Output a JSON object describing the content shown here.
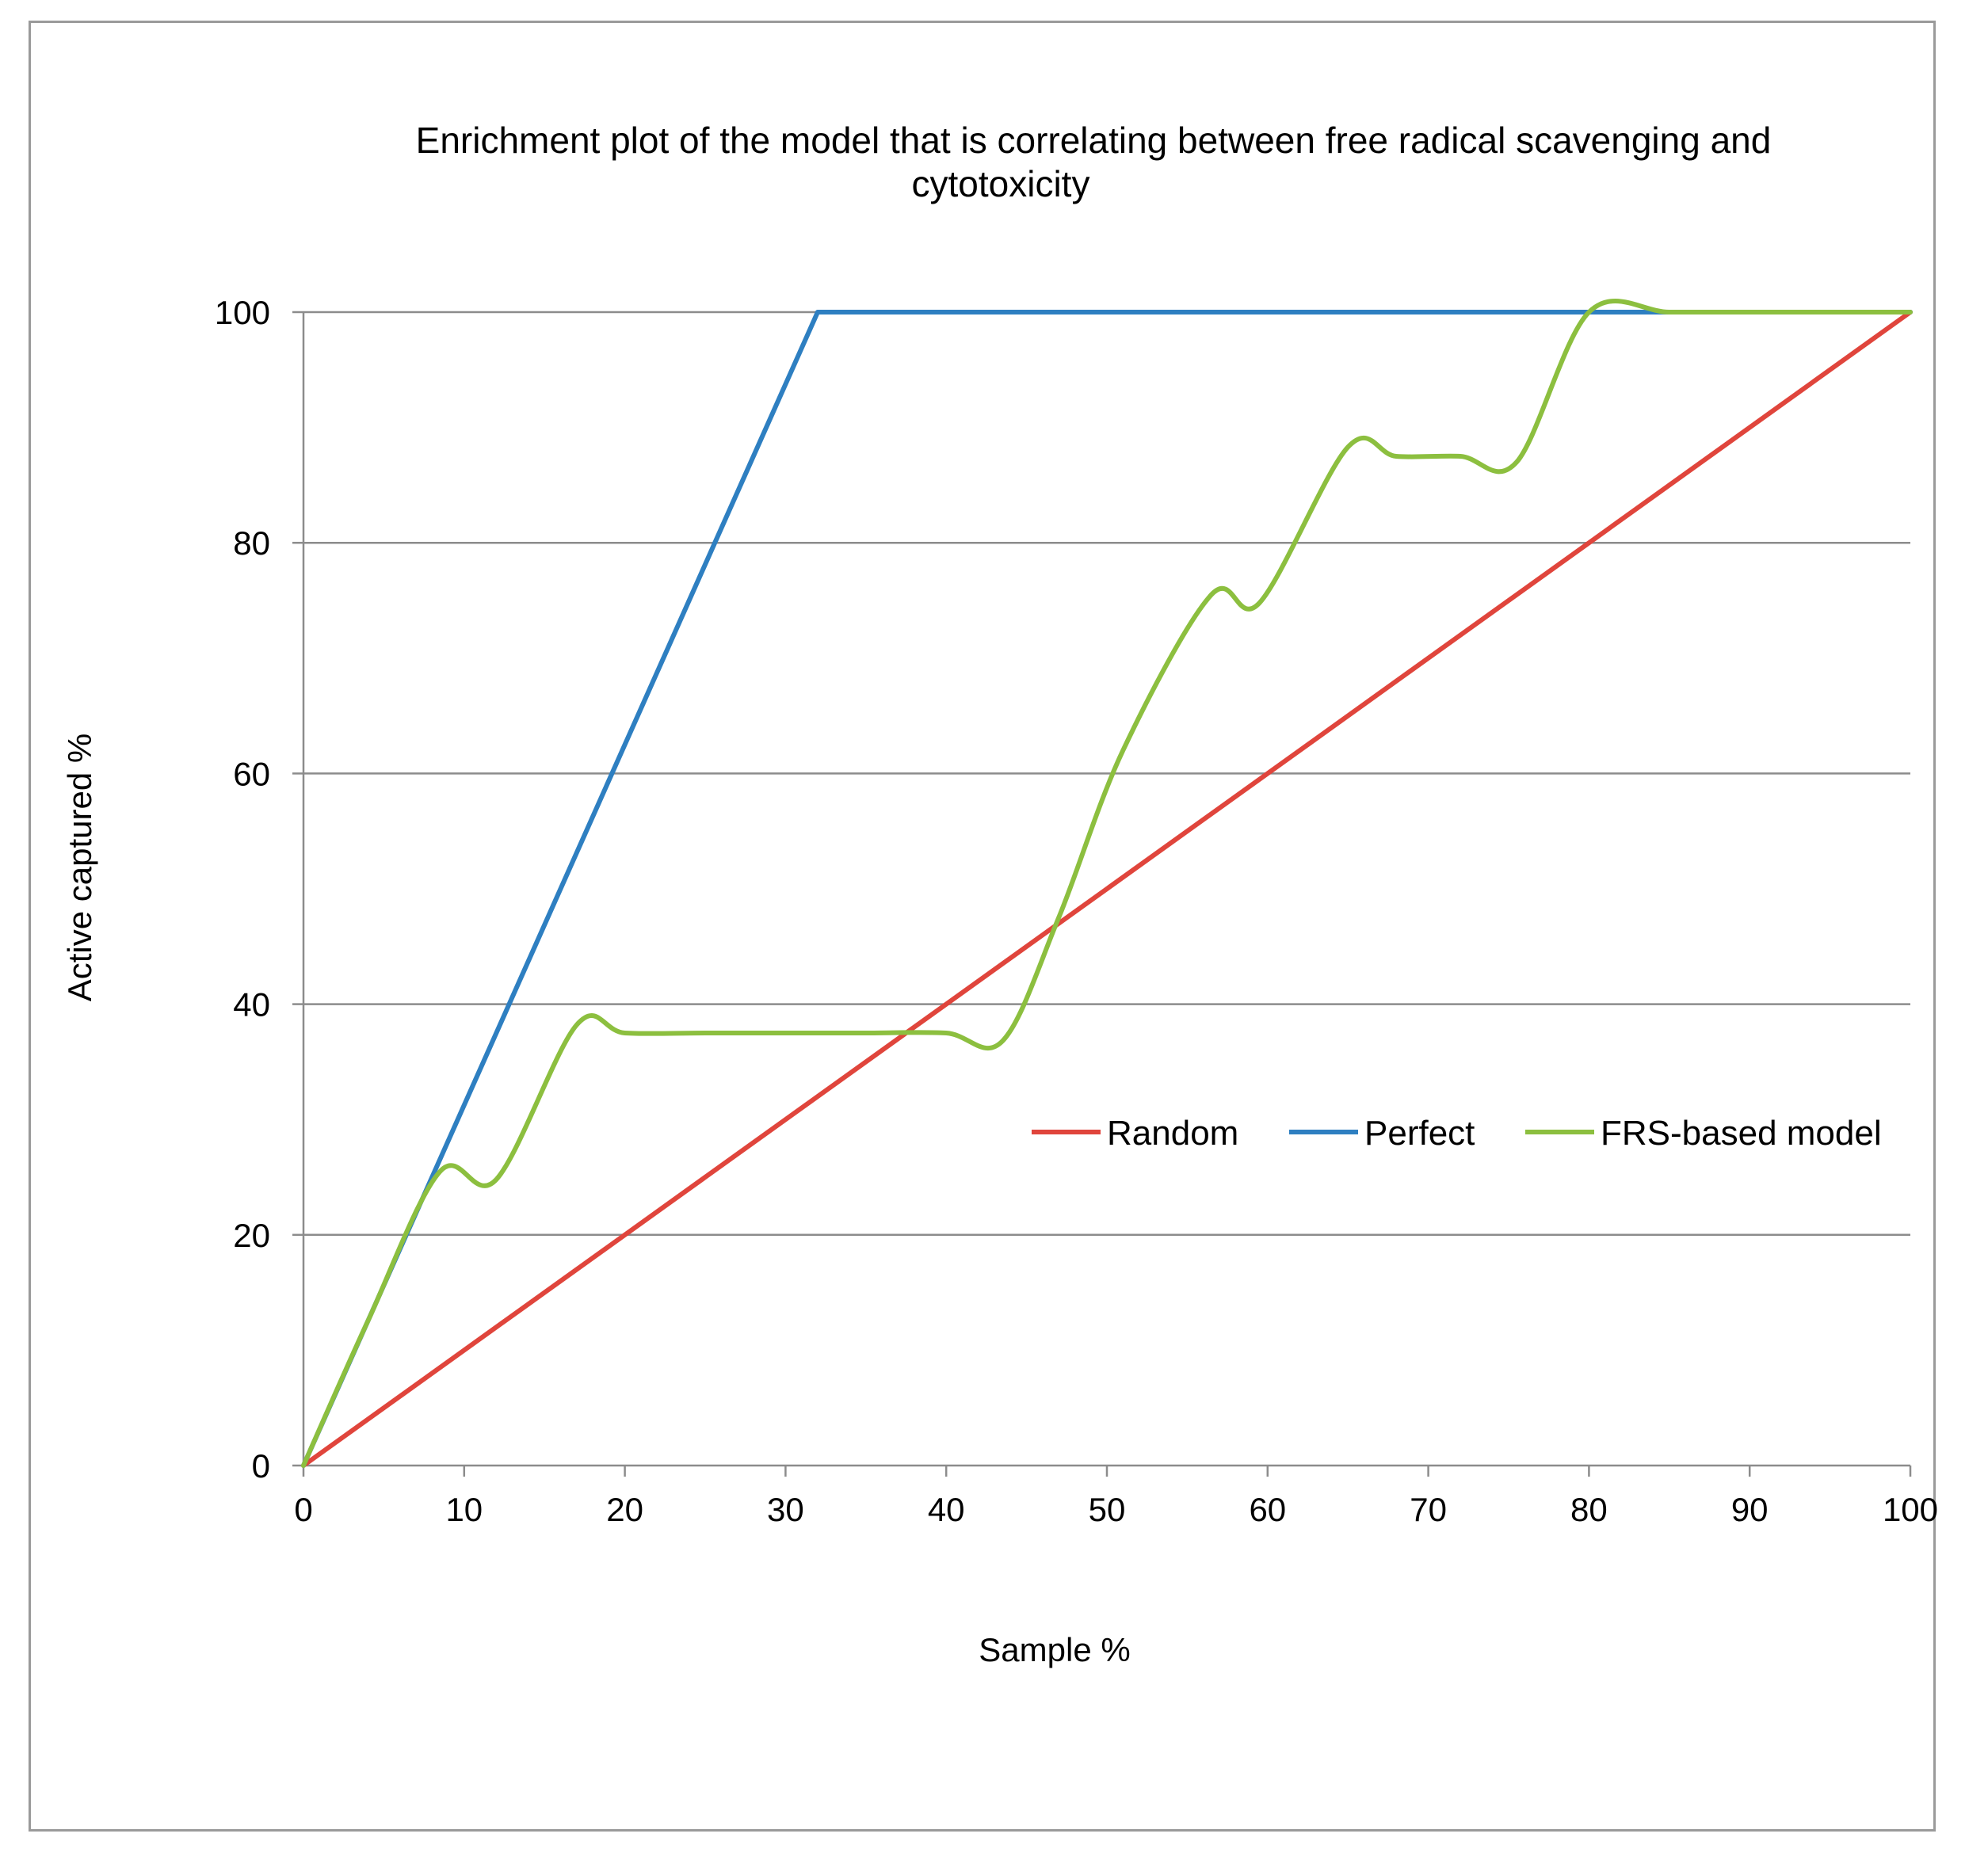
{
  "chart_data": {
    "type": "line",
    "title_lines": [
      "Enrichment plot of the model that is correlating between free radical scavenging and",
      "cytotoxicity"
    ],
    "xlabel": "Sample %",
    "ylabel": "Active captured %",
    "xlim": [
      0,
      100
    ],
    "ylim": [
      0,
      100
    ],
    "xticks": [
      0,
      10,
      20,
      30,
      40,
      50,
      60,
      70,
      80,
      90,
      100
    ],
    "yticks": [
      0,
      20,
      40,
      60,
      80,
      100
    ],
    "grid": "horizontal",
    "legend_position": "right-middle",
    "series": [
      {
        "name": "Random",
        "color": "#e0453c",
        "x": [
          0,
          100
        ],
        "y": [
          0,
          100
        ]
      },
      {
        "name": "Perfect",
        "color": "#2e7fc1",
        "x": [
          0,
          32,
          36,
          100
        ],
        "y": [
          0,
          100,
          100,
          100
        ]
      },
      {
        "name": "FRS-based model",
        "color": "#8cbf3f",
        "x": [
          0,
          4,
          8.5,
          12,
          17,
          20,
          25,
          30,
          35,
          40,
          43.5,
          47,
          51,
          56.5,
          59.5,
          65,
          68,
          72,
          75.5,
          80,
          85,
          90,
          100
        ],
        "y": [
          0,
          12.5,
          25.5,
          24.8,
          38.2,
          37.5,
          37.5,
          37.5,
          37.5,
          37.5,
          36.8,
          47.5,
          62,
          75.5,
          74.8,
          88.3,
          87.5,
          87.5,
          87,
          100,
          100,
          100,
          100
        ]
      }
    ]
  }
}
